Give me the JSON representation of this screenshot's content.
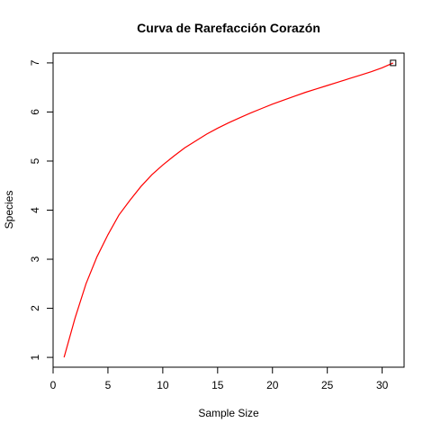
{
  "chart_data": {
    "type": "line",
    "title": "Curva de Rarefacción Corazón",
    "xlabel": "Sample Size",
    "ylabel": "Species",
    "xlim": [
      0,
      32
    ],
    "ylim": [
      0.8,
      7.2
    ],
    "x_ticks": [
      0,
      5,
      10,
      15,
      20,
      25,
      30
    ],
    "y_ticks": [
      1,
      2,
      3,
      4,
      5,
      6,
      7
    ],
    "grid": false,
    "series": [
      {
        "color": "#ff0000",
        "x": [
          1,
          2,
          3,
          4,
          5,
          6,
          7,
          8,
          9,
          10,
          11,
          12,
          13,
          14,
          15,
          16,
          17,
          18,
          19,
          20,
          21,
          22,
          23,
          24,
          25,
          26,
          27,
          28,
          29,
          30,
          31
        ],
        "y": [
          1.0,
          1.8,
          2.5,
          3.05,
          3.5,
          3.9,
          4.2,
          4.48,
          4.72,
          4.92,
          5.1,
          5.27,
          5.41,
          5.55,
          5.67,
          5.78,
          5.88,
          5.98,
          6.07,
          6.16,
          6.24,
          6.32,
          6.4,
          6.47,
          6.54,
          6.61,
          6.68,
          6.75,
          6.82,
          6.9,
          7.0
        ]
      }
    ],
    "end_marker": {
      "x": 31,
      "y": 7.0,
      "shape": "square"
    }
  }
}
